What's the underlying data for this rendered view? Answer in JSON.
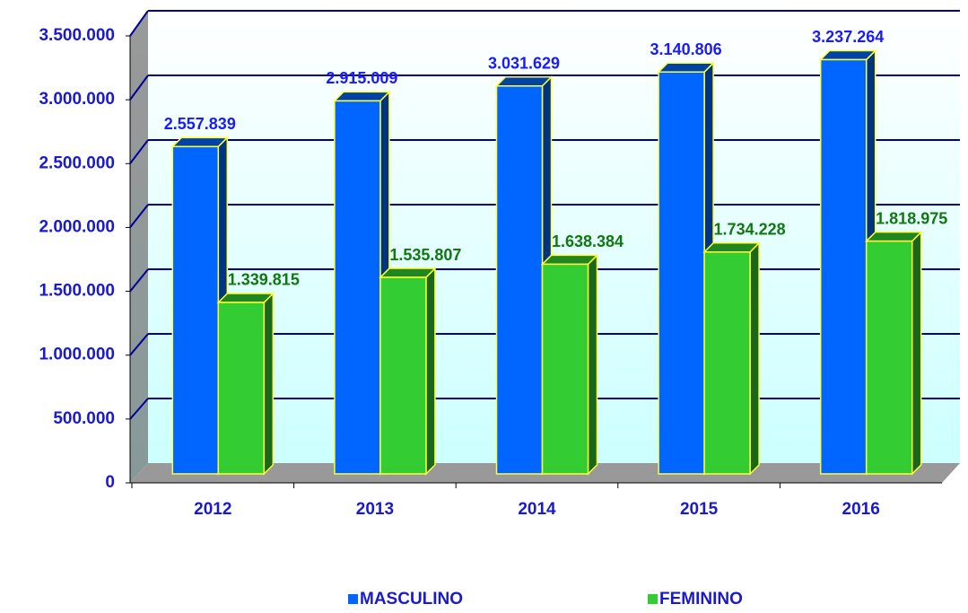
{
  "chart_data": {
    "type": "bar3d",
    "categories": [
      "2012",
      "2013",
      "2014",
      "2015",
      "2016"
    ],
    "series": [
      {
        "name": "MASCULINO",
        "color": "#0066ff",
        "values": [
          2557839,
          2915009,
          3031629,
          3140806,
          3237264
        ],
        "value_labels": [
          "2.557.839",
          "2.915.009",
          "3.031.629",
          "3.140.806",
          "3.237.264"
        ]
      },
      {
        "name": "FEMININO",
        "color": "#33cc33",
        "values": [
          1339815,
          1535807,
          1638384,
          1734228,
          1818975
        ],
        "value_labels": [
          "1.339.815",
          "1.535.807",
          "1.638.384",
          "1.734.228",
          "1.818.975"
        ]
      }
    ],
    "ylim": [
      0,
      3500000
    ],
    "yticks": [
      0,
      {
        "value": 500000,
        "label": "500.000"
      },
      {
        "value": 1000000,
        "label": "1.000.000"
      },
      {
        "value": 1500000,
        "label": "1.500.000"
      },
      {
        "value": 2000000,
        "label": "2.000.000"
      },
      {
        "value": 2500000,
        "label": "2.500.000"
      },
      {
        "value": 3000000,
        "label": "3.000.000"
      },
      {
        "value": 3500000,
        "label": "3.500.000"
      }
    ],
    "grid": true,
    "legend": "bottom"
  }
}
